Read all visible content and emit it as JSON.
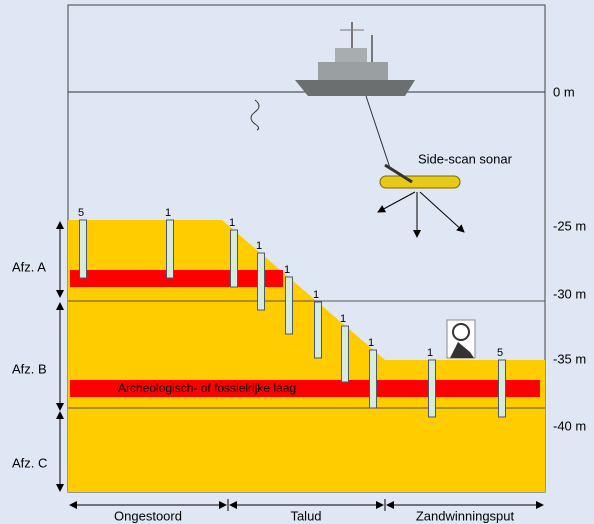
{
  "depth_labels": [
    "0 m",
    "-25 m",
    "-30 m",
    "-35 m",
    "-40 m"
  ],
  "sonar_label": "Side-scan sonar",
  "zones": [
    "Afz. A",
    "Afz. B",
    "Afz. C"
  ],
  "layer_label": "Archeologisch- of fossielrijke laag",
  "core_labels": [
    "5",
    "1",
    "1",
    "1",
    "1",
    "1",
    "1",
    "1",
    "1",
    "5"
  ],
  "sections": [
    "Ongestoord",
    "Talud",
    "Zandwinningsput"
  ]
}
